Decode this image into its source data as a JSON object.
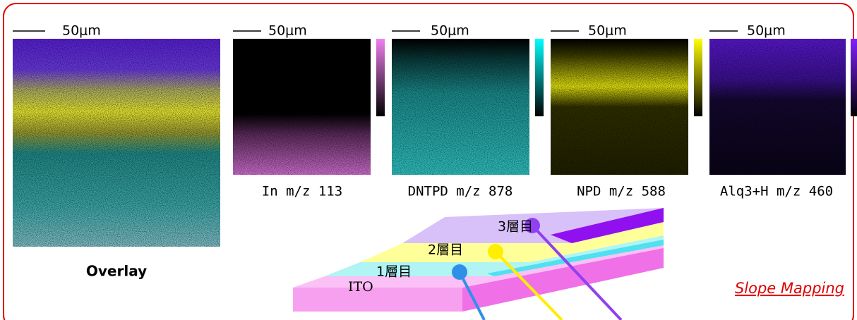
{
  "panels": [
    {
      "scale_label": "50μm",
      "caption": "Overlay"
    },
    {
      "scale_label": "50μm",
      "caption": "In  m/z 113"
    },
    {
      "scale_label": "50μm",
      "caption": "DNTPD  m/z 878"
    },
    {
      "scale_label": "50μm",
      "caption": "NPD  m/z 588"
    },
    {
      "scale_label": "50μm",
      "caption": "Alq3+H  m/z 460"
    }
  ],
  "layers": [
    {
      "label": "3層目"
    },
    {
      "label": "2層目"
    },
    {
      "label": "1層目"
    },
    {
      "label": "ITO"
    }
  ],
  "link": "Slope Mapping"
}
